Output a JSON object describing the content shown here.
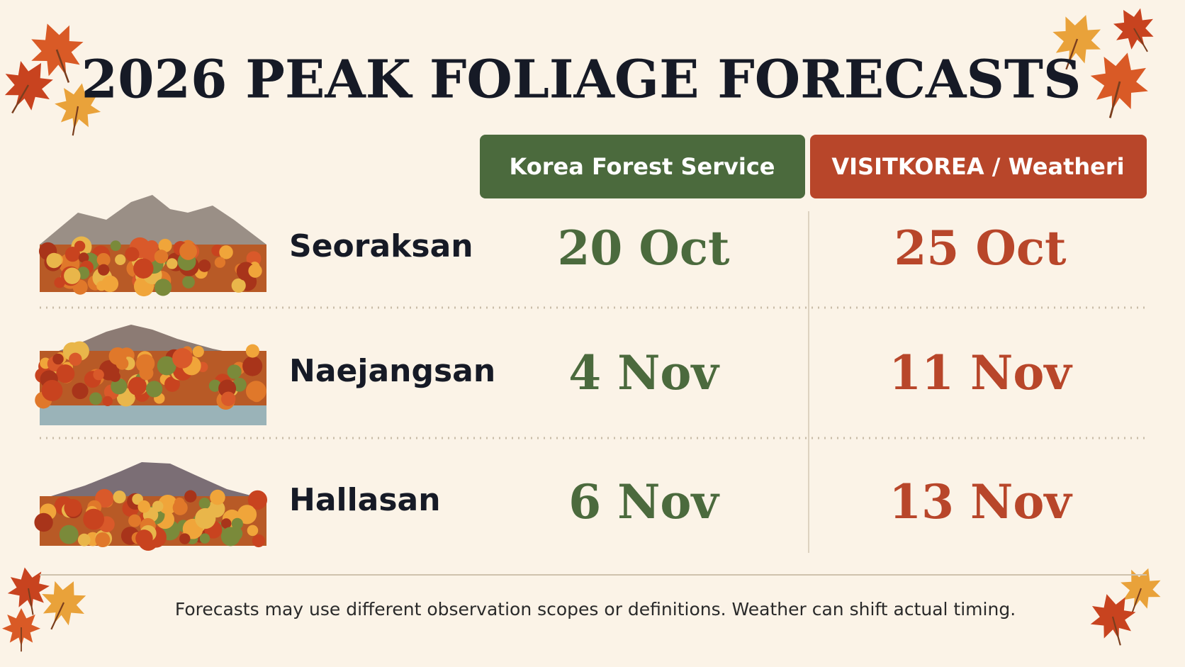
{
  "header": {
    "title": "2026 PEAK FOLIAGE FORECASTS"
  },
  "table": {
    "columns": [
      "Korea Forest Service",
      "VISITKOREA / Weatheri"
    ],
    "rows": [
      [
        "Seoraksan",
        "20 Oct",
        "25 Oct"
      ],
      [
        "Naejangsan",
        "4 Nov",
        "11 Nov"
      ],
      [
        "Hallasan",
        "6 Nov",
        "13 Nov"
      ]
    ]
  },
  "footer": {
    "note": "Forecasts may use different observation scopes or definitions. Weather can shift actual timing."
  }
}
